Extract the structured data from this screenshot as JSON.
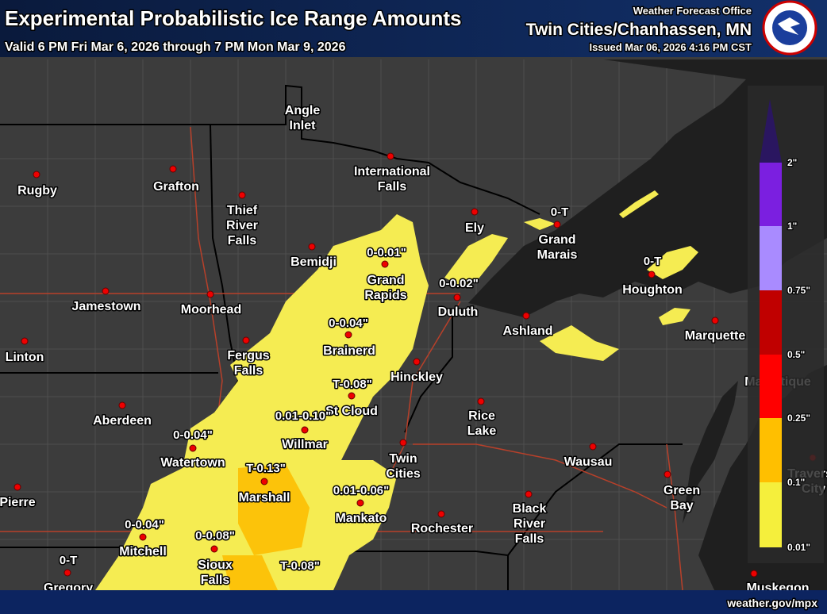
{
  "header": {
    "title": "Experimental Probabilistic Ice Range Amounts",
    "valid": "Valid 6 PM Fri Mar 6, 2026 through 7 PM Mon Mar 9, 2026",
    "office": "Weather Forecast Office",
    "office_name": "Twin Cities/Chanhassen, MN",
    "issued": "Issued Mar 06, 2026 4:16 PM CST"
  },
  "cities": [
    {
      "lines": [
        "Angle",
        "Inlet"
      ]
    },
    {
      "lines": [
        "International",
        "Falls"
      ]
    },
    {
      "lines": [
        "Rugby"
      ]
    },
    {
      "lines": [
        "Grafton"
      ]
    },
    {
      "lines": [
        "Thief",
        "River",
        "Falls"
      ]
    },
    {
      "lines": [
        "Bemidji"
      ]
    },
    {
      "lines": [
        "Ely"
      ]
    },
    {
      "lines": [
        "Grand",
        "Marais"
      ]
    },
    {
      "lines": [
        "Houghton"
      ]
    },
    {
      "lines": [
        "Jamestown"
      ]
    },
    {
      "lines": [
        "Moorhead"
      ]
    },
    {
      "lines": [
        "Grand",
        "Rapids"
      ]
    },
    {
      "lines": [
        "Duluth"
      ]
    },
    {
      "lines": [
        "Ashland"
      ]
    },
    {
      "lines": [
        "Marquette"
      ]
    },
    {
      "lines": [
        "Linton"
      ]
    },
    {
      "lines": [
        "Fergus",
        "Falls"
      ]
    },
    {
      "lines": [
        "Brainerd"
      ]
    },
    {
      "lines": [
        "Hinckley"
      ]
    },
    {
      "lines": [
        "Manistique"
      ]
    },
    {
      "lines": [
        "Aberdeen"
      ]
    },
    {
      "lines": [
        "St Cloud"
      ]
    },
    {
      "lines": [
        "Rice",
        "Lake"
      ]
    },
    {
      "lines": [
        "Willmar"
      ]
    },
    {
      "lines": [
        "Twin",
        "Cities"
      ]
    },
    {
      "lines": [
        "Watertown"
      ]
    },
    {
      "lines": [
        "Wausau"
      ]
    },
    {
      "lines": [
        "Traverse",
        "City"
      ]
    },
    {
      "lines": [
        "Pierre"
      ]
    },
    {
      "lines": [
        "Marshall"
      ]
    },
    {
      "lines": [
        "Green",
        "Bay"
      ]
    },
    {
      "lines": [
        "Mankato"
      ]
    },
    {
      "lines": [
        "Rochester"
      ]
    },
    {
      "lines": [
        "Black",
        "River",
        "Falls"
      ]
    },
    {
      "lines": [
        "Mitchell"
      ]
    },
    {
      "lines": [
        "Sioux",
        "Falls"
      ]
    },
    {
      "lines": [
        "Gregory"
      ]
    },
    {
      "lines": [
        "Muskegon"
      ]
    }
  ],
  "amounts": [
    "0-0.01\"",
    "0-0.02\"",
    "0-0.04\"",
    "T-0.08\"",
    "0.01-0.10\"",
    "0-0.04\"",
    "T-0.13\"",
    "0.01-0.06\"",
    "0-0.04\"",
    "0-0.08\"",
    "T-0.08\"",
    "0-T",
    "0-T",
    "0-T"
  ],
  "legend": [
    "2\"",
    "1\"",
    "0.75\"",
    "0.5\"",
    "0.25\"",
    "0.1\"",
    "0.01\""
  ],
  "footer": "weather.gov/mpx"
}
